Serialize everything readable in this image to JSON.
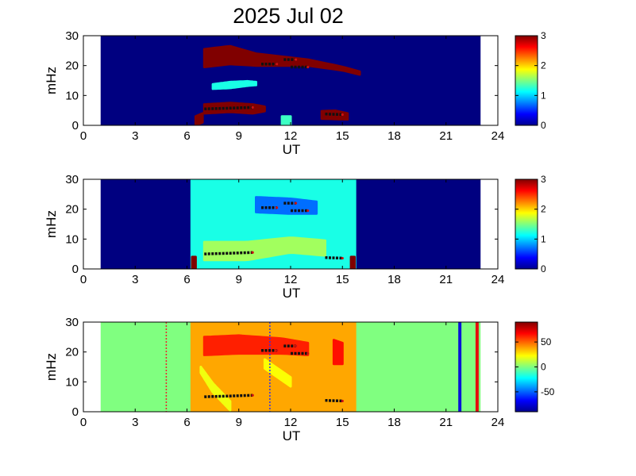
{
  "title": "2025 Jul 02",
  "chart_data": [
    {
      "type": "heatmap",
      "xlabel": "UT",
      "ylabel": "mHz",
      "xlim": [
        0,
        24
      ],
      "ylim": [
        0,
        30
      ],
      "x_ticks": [
        "0",
        "3",
        "6",
        "9",
        "12",
        "15",
        "18",
        "21",
        "24"
      ],
      "y_ticks": [
        "0",
        "10",
        "20",
        "30"
      ],
      "data_extent_x": [
        1,
        23
      ],
      "colorbar": {
        "range": [
          0,
          3
        ],
        "ticks": [
          "0",
          "1",
          "2",
          "3"
        ],
        "colormap": "jet"
      },
      "background_value": 0,
      "regions": [
        {
          "shape": "band",
          "x": [
            7.0,
            8.5,
            10.0,
            11.5,
            13.0,
            14.0,
            15.0,
            16.0
          ],
          "y_center": [
            22.5,
            23.5,
            22.0,
            21.5,
            21.0,
            20.0,
            19.0,
            17.5
          ],
          "thickness": [
            6,
            6,
            4,
            3,
            2,
            1.6,
            1.2,
            1.0
          ],
          "value": 3
        },
        {
          "shape": "band",
          "x": [
            7.0,
            8.5,
            9.8,
            10.5
          ],
          "y_center": [
            5.5,
            6.0,
            5.5,
            5.5
          ],
          "thickness": [
            3,
            3,
            3,
            1.5
          ],
          "value": 3
        },
        {
          "shape": "band",
          "x": [
            7.5,
            8.5,
            9.5,
            10.0
          ],
          "y_center": [
            13.0,
            13.5,
            14.0,
            14.0
          ],
          "thickness": [
            1.5,
            2.0,
            1.5,
            1.0
          ],
          "value": 1.2
        },
        {
          "shape": "band",
          "x": [
            13.8,
            14.6,
            15.3
          ],
          "y_center": [
            3.5,
            3.5,
            3.0
          ],
          "thickness": [
            2.5,
            2.8,
            2.0
          ],
          "value": 3
        },
        {
          "shape": "band",
          "x": [
            6.5,
            6.9
          ],
          "y_center": [
            1.5,
            2.5
          ],
          "thickness": [
            3,
            3
          ],
          "value": 3
        },
        {
          "shape": "band",
          "x": [
            11.5,
            12.0
          ],
          "y_center": [
            1.5,
            1.5
          ],
          "thickness": [
            3,
            3
          ],
          "value": 1.3
        }
      ],
      "markers": [
        {
          "x": [
            10.3,
            11.2
          ],
          "y": [
            20.5,
            20.5
          ]
        },
        {
          "x": [
            11.6,
            12.3
          ],
          "y": [
            22.0,
            22.0
          ]
        },
        {
          "x": [
            12.0,
            13.0
          ],
          "y": [
            19.5,
            19.5
          ]
        },
        {
          "x": [
            7.0,
            9.8
          ],
          "y": [
            5.5,
            6.0
          ]
        },
        {
          "x": [
            14.0,
            15.0
          ],
          "y": [
            3.8,
            3.6
          ]
        }
      ]
    },
    {
      "type": "heatmap",
      "xlabel": "UT",
      "ylabel": "mHz",
      "xlim": [
        0,
        24
      ],
      "ylim": [
        0,
        30
      ],
      "x_ticks": [
        "0",
        "3",
        "6",
        "9",
        "12",
        "15",
        "18",
        "21",
        "24"
      ],
      "y_ticks": [
        "0",
        "10",
        "20",
        "30"
      ],
      "data_extent_x": [
        1,
        23
      ],
      "colorbar": {
        "range": [
          0,
          3
        ],
        "ticks": [
          "0",
          "1",
          "2",
          "3"
        ],
        "colormap": "jet"
      },
      "background_value": 0,
      "active_interval_x": [
        6.2,
        15.8
      ],
      "active_base_value": 1.2,
      "regions": [
        {
          "shape": "band",
          "x": [
            10.0,
            12.0,
            13.5
          ],
          "y_center": [
            21.5,
            21.0,
            20.5
          ],
          "thickness": [
            5,
            5,
            4
          ],
          "value": 0.7
        },
        {
          "shape": "band",
          "x": [
            7.0,
            9.5,
            12.0,
            14.0
          ],
          "y_center": [
            6.0,
            6.0,
            8.0,
            7.0
          ],
          "thickness": [
            6,
            6,
            5,
            5
          ],
          "value": 1.6
        },
        {
          "shape": "band",
          "x": [
            6.3,
            6.5
          ],
          "y_center": [
            2.0,
            2.0
          ],
          "thickness": [
            4,
            4
          ],
          "value": 3
        },
        {
          "shape": "band",
          "x": [
            15.5,
            15.7
          ],
          "y_center": [
            2.0,
            2.0
          ],
          "thickness": [
            4,
            4
          ],
          "value": 3
        }
      ],
      "markers": [
        {
          "x": [
            10.3,
            11.2
          ],
          "y": [
            20.5,
            20.5
          ]
        },
        {
          "x": [
            11.6,
            12.3
          ],
          "y": [
            22.0,
            22.0
          ]
        },
        {
          "x": [
            12.0,
            13.0
          ],
          "y": [
            19.5,
            19.5
          ]
        },
        {
          "x": [
            7.0,
            9.8
          ],
          "y": [
            5.0,
            5.5
          ]
        },
        {
          "x": [
            14.0,
            15.0
          ],
          "y": [
            3.8,
            3.6
          ]
        }
      ]
    },
    {
      "type": "heatmap",
      "xlabel": "UT",
      "ylabel": "mHz",
      "xlim": [
        0,
        24
      ],
      "ylim": [
        0,
        30
      ],
      "x_ticks": [
        "0",
        "3",
        "6",
        "9",
        "12",
        "15",
        "18",
        "21",
        "24"
      ],
      "y_ticks": [
        "0",
        "10",
        "20",
        "30"
      ],
      "data_extent_x": [
        1,
        23
      ],
      "colorbar": {
        "range": [
          -90,
          90
        ],
        "ticks": [
          "50",
          "0",
          "-50"
        ],
        "tick_values": [
          50,
          0,
          -50
        ],
        "colormap": "jet"
      },
      "background_value": 0,
      "active_interval_x": [
        6.2,
        15.8
      ],
      "active_base_value": 38,
      "regions": [
        {
          "shape": "band",
          "x": [
            7.0,
            9.0,
            11.5,
            13.0
          ],
          "y_center": [
            22.0,
            22.5,
            22.0,
            21.0
          ],
          "thickness": [
            6,
            6,
            5,
            4
          ],
          "value": 62
        },
        {
          "shape": "band",
          "x": [
            14.5,
            15.0
          ],
          "y_center": [
            20.0,
            19.5
          ],
          "thickness": [
            8,
            7
          ],
          "value": 65
        },
        {
          "shape": "band",
          "x": [
            6.8,
            7.5,
            8.5
          ],
          "y_center": [
            14.0,
            8.0,
            2.0
          ],
          "thickness": [
            2,
            3,
            3
          ],
          "value": 20
        },
        {
          "shape": "band",
          "x": [
            10.5,
            12.0
          ],
          "y_center": [
            16.0,
            10.0
          ],
          "thickness": [
            3,
            3
          ],
          "value": 22
        }
      ],
      "markers": [
        {
          "x": [
            10.3,
            11.2
          ],
          "y": [
            20.5,
            20.5
          ]
        },
        {
          "x": [
            11.6,
            12.3
          ],
          "y": [
            22.0,
            22.0
          ]
        },
        {
          "x": [
            12.0,
            13.0
          ],
          "y": [
            19.5,
            19.5
          ]
        },
        {
          "x": [
            7.0,
            9.8
          ],
          "y": [
            5.0,
            5.5
          ]
        },
        {
          "x": [
            14.0,
            15.0
          ],
          "y": [
            3.8,
            3.6
          ]
        }
      ],
      "vlines": [
        {
          "x": 4.8,
          "color": "#e8272a",
          "style": "dotted"
        },
        {
          "x": 10.8,
          "color": "#2b2ff0",
          "style": "dotted"
        },
        {
          "x": 21.8,
          "color": "#0a14d6",
          "style": "solid"
        },
        {
          "x": 22.8,
          "color": "#e50d0d",
          "style": "solid"
        }
      ]
    }
  ]
}
